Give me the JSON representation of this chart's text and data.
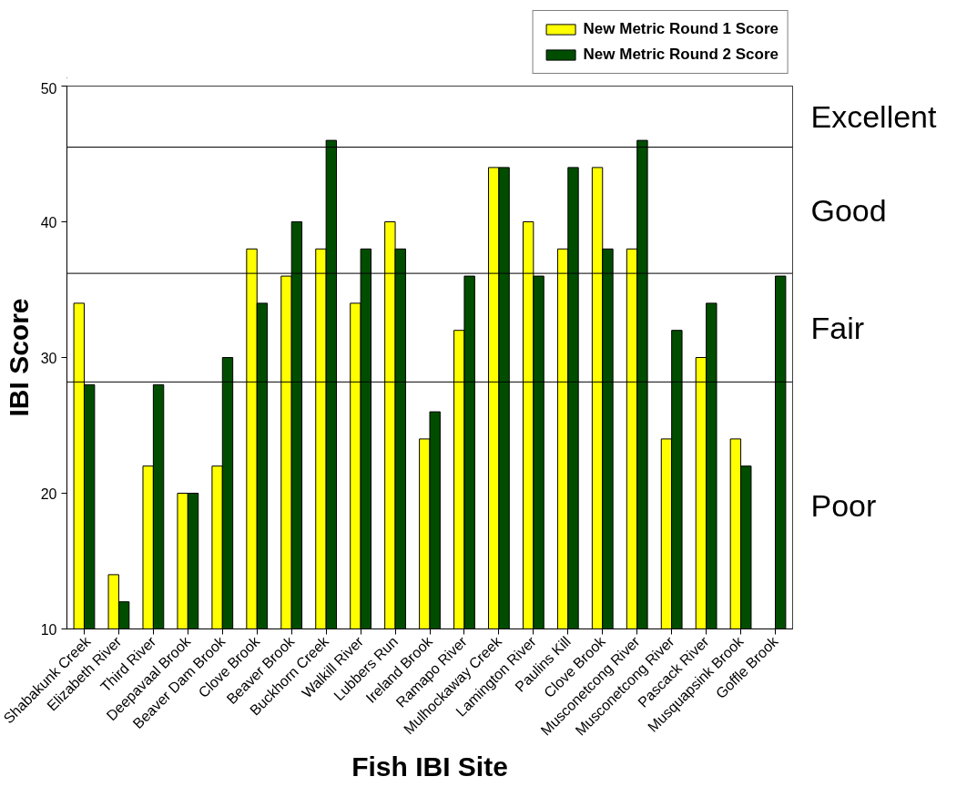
{
  "chart_data": {
    "type": "bar",
    "xlabel": "Fish IBI Site",
    "ylabel": "IBI Score",
    "categories": [
      "Shabakunk Creek",
      "Elizabeth River",
      "Third River",
      "Deepavaal Brook",
      "Beaver Dam Brook",
      "Clove Brook",
      "Beaver Brook",
      "Buckhorn Creek",
      "Walkill River",
      "Lubbers Run",
      "Ireland Brook",
      "Ramapo River",
      "Mulhockaway Creek",
      "Lamington River",
      "Paulins Kill",
      "Clove Brook",
      "Musconetcong River",
      "Musconetcong River",
      "Pascack River",
      "Musquapsink Brook",
      "Goffle Brook"
    ],
    "series": [
      {
        "name": "New Metric Round 1 Score",
        "color": "#ffff00",
        "values": [
          34,
          14,
          22,
          20,
          22,
          38,
          36,
          38,
          34,
          40,
          24,
          32,
          44,
          40,
          38,
          44,
          38,
          24,
          30,
          24,
          null
        ]
      },
      {
        "name": "New Metric Round 2 Score",
        "color": "#004d00",
        "values": [
          28,
          12,
          28,
          20,
          30,
          34,
          40,
          46,
          38,
          38,
          26,
          36,
          44,
          36,
          44,
          38,
          46,
          32,
          34,
          22,
          36
        ]
      }
    ],
    "ylim": [
      10,
      50
    ],
    "yticks": [
      10,
      20,
      30,
      40,
      50
    ],
    "grid": false,
    "legend": "top right",
    "ref_lines": [
      {
        "axis": "y",
        "value": 45.5,
        "color": "#000000"
      },
      {
        "axis": "y",
        "value": 36.2,
        "color": "#000000"
      },
      {
        "axis": "y",
        "value": 28.2,
        "color": "#000000"
      }
    ],
    "bands": [
      {
        "axis": "y",
        "from": 45.5,
        "to": 50,
        "label": "Excellent",
        "color": "#ffffff"
      },
      {
        "axis": "y",
        "from": 36.2,
        "to": 45.5,
        "label": "Good",
        "color": "#ffffff"
      },
      {
        "axis": "y",
        "from": 28.2,
        "to": 36.2,
        "label": "Fair",
        "color": "#ffffff"
      },
      {
        "axis": "y",
        "from": 10,
        "to": 28.2,
        "label": "Poor",
        "color": "#ffffff"
      }
    ]
  }
}
